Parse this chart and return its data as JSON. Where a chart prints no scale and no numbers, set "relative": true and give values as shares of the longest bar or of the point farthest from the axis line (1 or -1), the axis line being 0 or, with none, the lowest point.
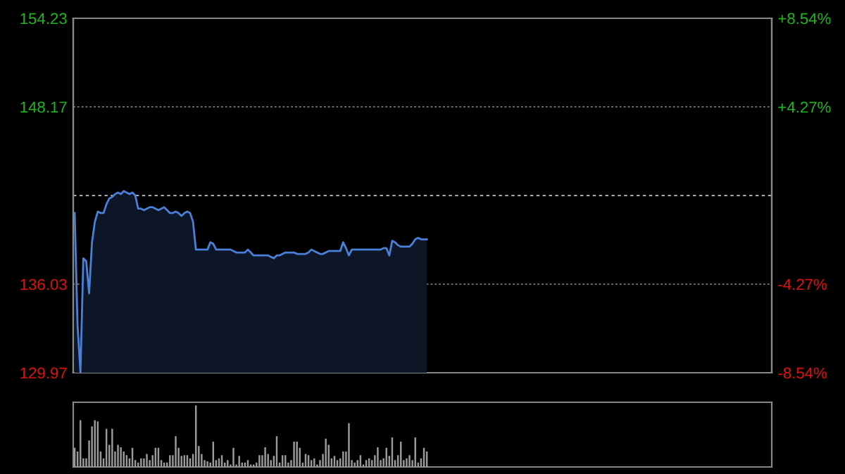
{
  "chart_data": [
    {
      "type": "line",
      "categories": [
        null,
        null,
        null,
        null,
        null,
        null,
        null,
        null,
        null,
        null,
        null,
        null,
        null,
        null,
        null,
        null,
        null,
        null,
        null,
        null,
        null,
        null,
        null,
        null,
        null,
        null,
        null,
        null,
        null,
        null,
        null,
        null,
        null,
        null,
        null,
        null,
        null,
        null,
        null,
        null,
        null,
        null,
        null,
        null,
        null,
        null,
        null,
        null,
        null,
        null,
        null,
        null,
        null,
        null,
        null,
        null,
        null,
        null,
        null,
        null,
        null,
        null,
        null,
        null,
        null,
        null,
        null,
        null,
        null,
        null,
        null,
        null,
        null,
        null,
        null,
        null,
        null,
        null,
        null,
        null,
        null,
        null,
        null,
        null,
        null,
        null,
        null,
        null,
        null,
        null,
        null,
        null,
        null,
        null,
        null,
        null,
        null,
        null,
        null,
        null,
        null,
        null,
        null,
        null,
        null,
        null,
        null,
        null,
        null,
        null,
        null,
        null,
        null,
        null,
        null,
        null,
        null,
        null,
        null,
        null,
        null,
        null,
        null
      ],
      "ylim": [
        129.97,
        154.23
      ],
      "yticks": [
        129.97,
        136.03,
        148.17,
        154.23
      ],
      "y2lim": [
        -8.54,
        8.54
      ],
      "y2ticks": [
        {
          "value": -8.54,
          "label": "-8.54%"
        },
        {
          "value": -4.27,
          "label": "-4.27%"
        },
        {
          "value": 4.27,
          "label": "+4.27%"
        },
        {
          "value": 8.54,
          "label": "+8.54%"
        }
      ],
      "grid": "y",
      "ref_lines": [
        {
          "axis": "y",
          "value": 142.1,
          "color": "#aaaaaa",
          "line_style": "dashed"
        }
      ],
      "series": [
        {
          "color": "#4a80d8",
          "values": [
            140.9,
            133.2,
            130.0,
            137.8,
            137.6,
            135.4,
            138.9,
            140.3,
            141.0,
            140.9,
            140.9,
            141.5,
            141.9,
            142.0,
            142.2,
            142.3,
            142.2,
            142.4,
            142.3,
            142.2,
            142.3,
            142.1,
            141.2,
            141.2,
            141.1,
            141.2,
            141.3,
            141.3,
            141.2,
            141.1,
            141.2,
            141.3,
            141.1,
            140.9,
            140.9,
            141.0,
            140.9,
            140.7,
            140.9,
            141.0,
            140.9,
            140.3,
            138.4,
            138.4,
            138.4,
            138.4,
            138.4,
            138.9,
            138.8,
            138.4,
            138.4,
            138.4,
            138.4,
            138.4,
            138.4,
            138.3,
            138.2,
            138.2,
            138.2,
            138.2,
            138.4,
            138.2,
            138.0,
            138.0,
            138.0,
            138.0,
            138.0,
            138.0,
            137.9,
            137.8,
            138.0,
            138.0,
            138.1,
            138.2,
            138.2,
            138.2,
            138.2,
            138.1,
            138.1,
            138.1,
            138.1,
            138.2,
            138.4,
            138.3,
            138.2,
            138.1,
            138.1,
            138.2,
            138.3,
            138.3,
            138.3,
            138.3,
            138.3,
            138.9,
            138.5,
            138.0,
            138.4,
            138.4,
            138.4,
            138.4,
            138.4,
            138.4,
            138.4,
            138.4,
            138.4,
            138.4,
            138.4,
            138.5,
            138.5,
            138.0,
            139.0,
            138.9,
            138.7,
            138.6,
            138.6,
            138.6,
            138.6,
            138.8,
            139.1,
            139.2,
            139.1,
            139.1,
            139.1
          ]
        }
      ]
    },
    {
      "type": "bar",
      "relative": true,
      "color": "#9a9a9a",
      "categories": [
        null,
        null,
        null,
        null,
        null,
        null,
        null,
        null,
        null,
        null,
        null,
        null,
        null,
        null,
        null,
        null,
        null,
        null,
        null,
        null,
        null,
        null,
        null,
        null,
        null,
        null,
        null,
        null,
        null,
        null,
        null,
        null,
        null,
        null,
        null,
        null,
        null,
        null,
        null,
        null,
        null,
        null,
        null,
        null,
        null,
        null,
        null,
        null,
        null,
        null,
        null,
        null,
        null,
        null,
        null,
        null,
        null,
        null,
        null,
        null,
        null,
        null,
        null,
        null,
        null,
        null,
        null,
        null,
        null,
        null,
        null,
        null,
        null,
        null,
        null,
        null,
        null,
        null,
        null,
        null,
        null,
        null,
        null,
        null,
        null,
        null,
        null,
        null,
        null,
        null,
        null,
        null,
        null,
        null,
        null,
        null,
        null,
        null,
        null,
        null,
        null,
        null,
        null,
        null,
        null,
        null,
        null,
        null,
        null,
        null,
        null,
        null,
        null,
        null,
        null,
        null,
        null,
        null,
        null,
        null,
        null,
        null,
        null
      ],
      "values": [
        0.31,
        0.25,
        0.76,
        0.14,
        0.14,
        0.43,
        0.66,
        0.76,
        0.74,
        0.25,
        0.14,
        0.62,
        0.36,
        0.62,
        0.25,
        0.36,
        0.32,
        0.25,
        0.19,
        0.14,
        0.31,
        0.11,
        0.07,
        0.14,
        0.14,
        0.21,
        0.11,
        0.19,
        0.31,
        0.31,
        0.11,
        0.07,
        0.07,
        0.19,
        0.19,
        0.5,
        0.31,
        0.18,
        0.19,
        0.19,
        0.14,
        0.21,
        1,
        0.34,
        0.21,
        0.11,
        0.09,
        0.07,
        0.41,
        0.11,
        0.14,
        0.19,
        0.07,
        0.11,
        0.04,
        0.31,
        0.04,
        0.18,
        0.07,
        0.07,
        0.11,
        0.04,
        0.04,
        0.07,
        0.19,
        0.19,
        0.32,
        0.21,
        0.11,
        0.18,
        0.5,
        0.07,
        0.19,
        0.19,
        0.07,
        0.11,
        0.41,
        0.41,
        0.31,
        0.07,
        0.21,
        0.19,
        0.11,
        0.14,
        0.04,
        0.11,
        0.21,
        0.46,
        0.36,
        0.14,
        0.18,
        0.11,
        0.14,
        0.25,
        0.25,
        0.71,
        0.11,
        0.07,
        0.11,
        0.19,
        0.04,
        0.11,
        0.14,
        0.11,
        0.19,
        0.32,
        0.11,
        0.14,
        0.31,
        0.18,
        0.48,
        0.11,
        0.19,
        0.41,
        0.11,
        0.14,
        0.19,
        0.11,
        0.48,
        0.07,
        0.14,
        0.31,
        0.25
      ]
    }
  ]
}
